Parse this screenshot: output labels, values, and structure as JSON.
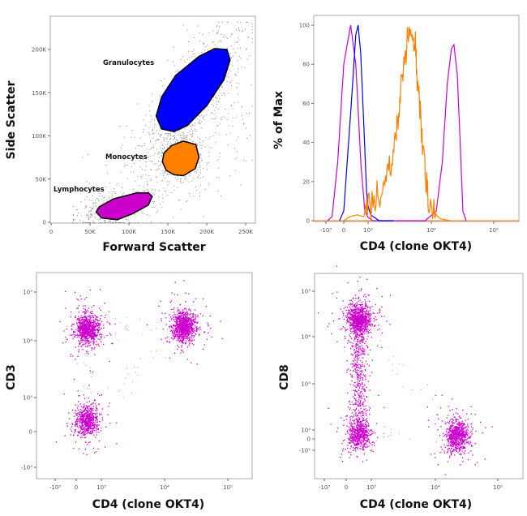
{
  "chart_data": [
    {
      "type": "scatter",
      "xlabel": "Forward Scatter",
      "ylabel": "Side Scatter",
      "xlim": [
        0,
        262000
      ],
      "ylim": [
        0,
        262000
      ],
      "x_ticks": [
        "0",
        "50K",
        "100K",
        "150K",
        "200K",
        "250K"
      ],
      "x_tick_values": [
        0,
        50000,
        100000,
        150000,
        200000,
        250000
      ],
      "y_ticks": [
        "0",
        "50K",
        "100K",
        "150K",
        "200K"
      ],
      "y_tick_values": [
        0,
        50000,
        100000,
        150000,
        200000
      ],
      "background_color": "#808080",
      "gates": [
        {
          "name": "Granulocytes",
          "color": "#0000ff",
          "polygon": [
            [
              135,
              123
            ],
            [
              142,
              108
            ],
            [
              158,
              105
            ],
            [
              175,
              112
            ],
            [
              200,
              135
            ],
            [
              222,
              165
            ],
            [
              230,
              188
            ],
            [
              226,
              200
            ],
            [
              210,
              201
            ],
            [
              190,
              192
            ],
            [
              160,
              170
            ],
            [
              142,
              145
            ]
          ]
        },
        {
          "name": "Monocytes",
          "color": "#ff8000",
          "polygon": [
            [
              143,
              70
            ],
            [
              148,
              60
            ],
            [
              158,
              55
            ],
            [
              170,
              54
            ],
            [
              185,
              62
            ],
            [
              190,
              75
            ],
            [
              186,
              90
            ],
            [
              170,
              94
            ],
            [
              155,
              89
            ],
            [
              145,
              80
            ]
          ]
        },
        {
          "name": "Lymphocytes",
          "color": "#cc00cc",
          "polygon": [
            [
              58,
              12
            ],
            [
              65,
              5
            ],
            [
              85,
              3
            ],
            [
              105,
              10
            ],
            [
              125,
              20
            ],
            [
              130,
              30
            ],
            [
              125,
              34
            ],
            [
              110,
              34
            ],
            [
              80,
              27
            ],
            [
              62,
              18
            ]
          ]
        }
      ],
      "gate_polygon_units": "K"
    },
    {
      "type": "line",
      "xlabel": "CD4 (clone OKT4)",
      "ylabel": "% of Max",
      "x_scale": "biexponential",
      "ylim": [
        0,
        100
      ],
      "x_ticks": [
        "-10³",
        "0",
        "10³",
        "10⁴",
        "10⁵"
      ],
      "x_tick_values": [
        -1000,
        0,
        1000,
        10000,
        100000
      ],
      "y_ticks": [
        "0",
        "20",
        "40",
        "60",
        "80",
        "100"
      ],
      "y_tick_values": [
        0,
        20,
        40,
        60,
        80,
        100
      ],
      "series": [
        {
          "color": "#cc00cc",
          "points": [
            [
              -800,
              0
            ],
            [
              -400,
              2
            ],
            [
              -150,
              30
            ],
            [
              0,
              80
            ],
            [
              120,
              100
            ],
            [
              250,
              80
            ],
            [
              450,
              30
            ],
            [
              700,
              5
            ],
            [
              1200,
              0
            ],
            [
              8000,
              0
            ],
            [
              12000,
              5
            ],
            [
              15000,
              30
            ],
            [
              18000,
              70
            ],
            [
              21000,
              88
            ],
            [
              23000,
              90
            ],
            [
              26000,
              75
            ],
            [
              29000,
              40
            ],
            [
              32000,
              5
            ],
            [
              36000,
              0
            ]
          ]
        },
        {
          "color": "#0000ff",
          "points": [
            [
              -100,
              0
            ],
            [
              0,
              5
            ],
            [
              120,
              55
            ],
            [
              250,
              95
            ],
            [
              330,
              100
            ],
            [
              450,
              85
            ],
            [
              650,
              45
            ],
            [
              850,
              15
            ],
            [
              1100,
              3
            ],
            [
              1500,
              0
            ],
            [
              2500,
              0
            ]
          ]
        },
        {
          "color": "#ff8000",
          "points": [
            [
              0,
              0
            ],
            [
              100,
              2
            ],
            [
              300,
              3
            ],
            [
              600,
              2
            ],
            [
              900,
              5
            ],
            [
              1200,
              8
            ],
            [
              1600,
              12
            ],
            [
              2000,
              20
            ],
            [
              2500,
              35
            ],
            [
              3000,
              55
            ],
            [
              3500,
              75
            ],
            [
              4000,
              88
            ],
            [
              4500,
              98
            ],
            [
              5000,
              92
            ],
            [
              5600,
              88
            ],
            [
              6200,
              70
            ],
            [
              7000,
              45
            ],
            [
              8000,
              25
            ],
            [
              9000,
              10
            ],
            [
              11000,
              4
            ],
            [
              14000,
              1
            ],
            [
              20000,
              0
            ]
          ]
        }
      ]
    },
    {
      "type": "scatter",
      "xlabel": "CD4 (clone OKT4)",
      "ylabel": "CD3",
      "x_scale": "biexponential",
      "y_scale": "biexponential",
      "x_ticks": [
        "-10³",
        "0",
        "10³",
        "10⁴",
        "10⁵"
      ],
      "x_tick_values": [
        -1000,
        0,
        1000,
        10000,
        100000
      ],
      "y_ticks": [
        "-10³",
        "0",
        "10³",
        "10⁴",
        "10⁵"
      ],
      "y_tick_values": [
        -1000,
        0,
        1000,
        10000,
        100000
      ],
      "color": "#cc00cc",
      "populations": [
        {
          "x": 200,
          "y": 150,
          "share": 0.25
        },
        {
          "x": 200,
          "y": 18000,
          "share": 0.35
        },
        {
          "x": 20000,
          "y": 20000,
          "share": 0.4
        }
      ]
    },
    {
      "type": "scatter",
      "xlabel": "CD4 (clone OKT4)",
      "ylabel": "CD8",
      "x_scale": "biexponential",
      "y_scale": "biexponential",
      "x_ticks": [
        "-10³",
        "0",
        "10³",
        "10⁴",
        "10⁵"
      ],
      "x_tick_values": [
        -1000,
        0,
        1000,
        10000,
        100000
      ],
      "y_ticks": [
        "-10²",
        "0",
        "10²",
        "10³",
        "10⁴",
        "10⁵"
      ],
      "y_tick_values": [
        -100,
        0,
        100,
        1000,
        10000,
        100000
      ],
      "color": "#cc00cc",
      "populations": [
        {
          "x": 250,
          "y": 25000,
          "share": 0.35
        },
        {
          "x": 250,
          "y": 40,
          "share": 0.2
        },
        {
          "x": 22000,
          "y": 40,
          "share": 0.3
        }
      ]
    }
  ]
}
